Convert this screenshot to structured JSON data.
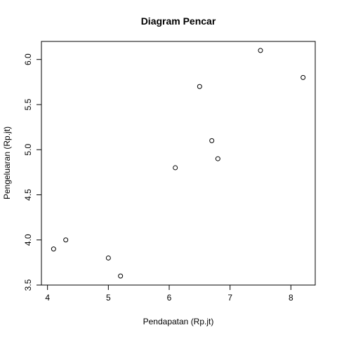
{
  "chart_data": {
    "type": "scatter",
    "title": "Diagram Pencar",
    "xlabel": "Pendapatan (Rp.jt)",
    "ylabel": "Pengeluaran (Rp.jt)",
    "xlim": [
      3.9,
      8.4
    ],
    "ylim": [
      3.5,
      6.2
    ],
    "xticks": [
      4,
      5,
      6,
      7,
      8
    ],
    "xtick_labels": [
      "4",
      "5",
      "6",
      "7",
      "8"
    ],
    "yticks": [
      3.5,
      4.0,
      4.5,
      5.0,
      5.5,
      6.0
    ],
    "ytick_labels": [
      "3.5",
      "4.0",
      "4.5",
      "5.0",
      "5.5",
      "6.0"
    ],
    "grid": false,
    "marker": "open-circle",
    "points": [
      {
        "x": 4.1,
        "y": 3.9
      },
      {
        "x": 4.3,
        "y": 4.0
      },
      {
        "x": 5.0,
        "y": 3.8
      },
      {
        "x": 5.2,
        "y": 3.6
      },
      {
        "x": 6.1,
        "y": 4.8
      },
      {
        "x": 6.5,
        "y": 5.7
      },
      {
        "x": 6.7,
        "y": 5.1
      },
      {
        "x": 6.8,
        "y": 4.9
      },
      {
        "x": 7.5,
        "y": 6.1
      },
      {
        "x": 8.2,
        "y": 5.8
      }
    ]
  }
}
